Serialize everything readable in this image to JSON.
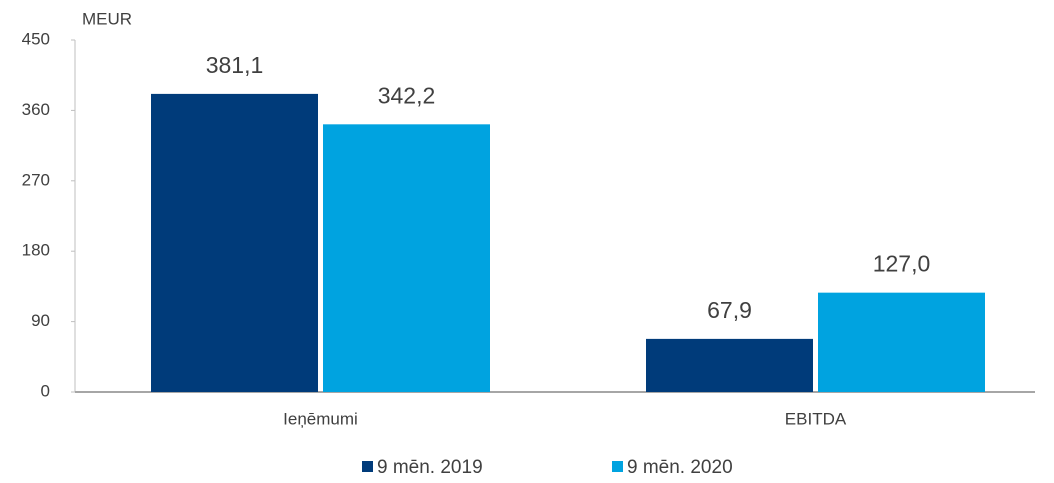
{
  "chart_data": {
    "type": "bar",
    "y_axis_label": "MEUR",
    "categories": [
      "Ieņēmumi",
      "EBITDA"
    ],
    "series": [
      {
        "name": "9 mēn. 2019",
        "color": "#003b7a",
        "values": [
          381.1,
          67.9
        ],
        "value_labels": [
          "381,1",
          "67,9"
        ]
      },
      {
        "name": "9 mēn. 2020",
        "color": "#00a3e0",
        "values": [
          342.2,
          127.0
        ],
        "value_labels": [
          "342,2",
          "127,0"
        ]
      }
    ],
    "ylim": [
      0,
      450
    ],
    "yticks": [
      0,
      90,
      180,
      270,
      360,
      450
    ],
    "grid": false,
    "legend": "bottom"
  }
}
